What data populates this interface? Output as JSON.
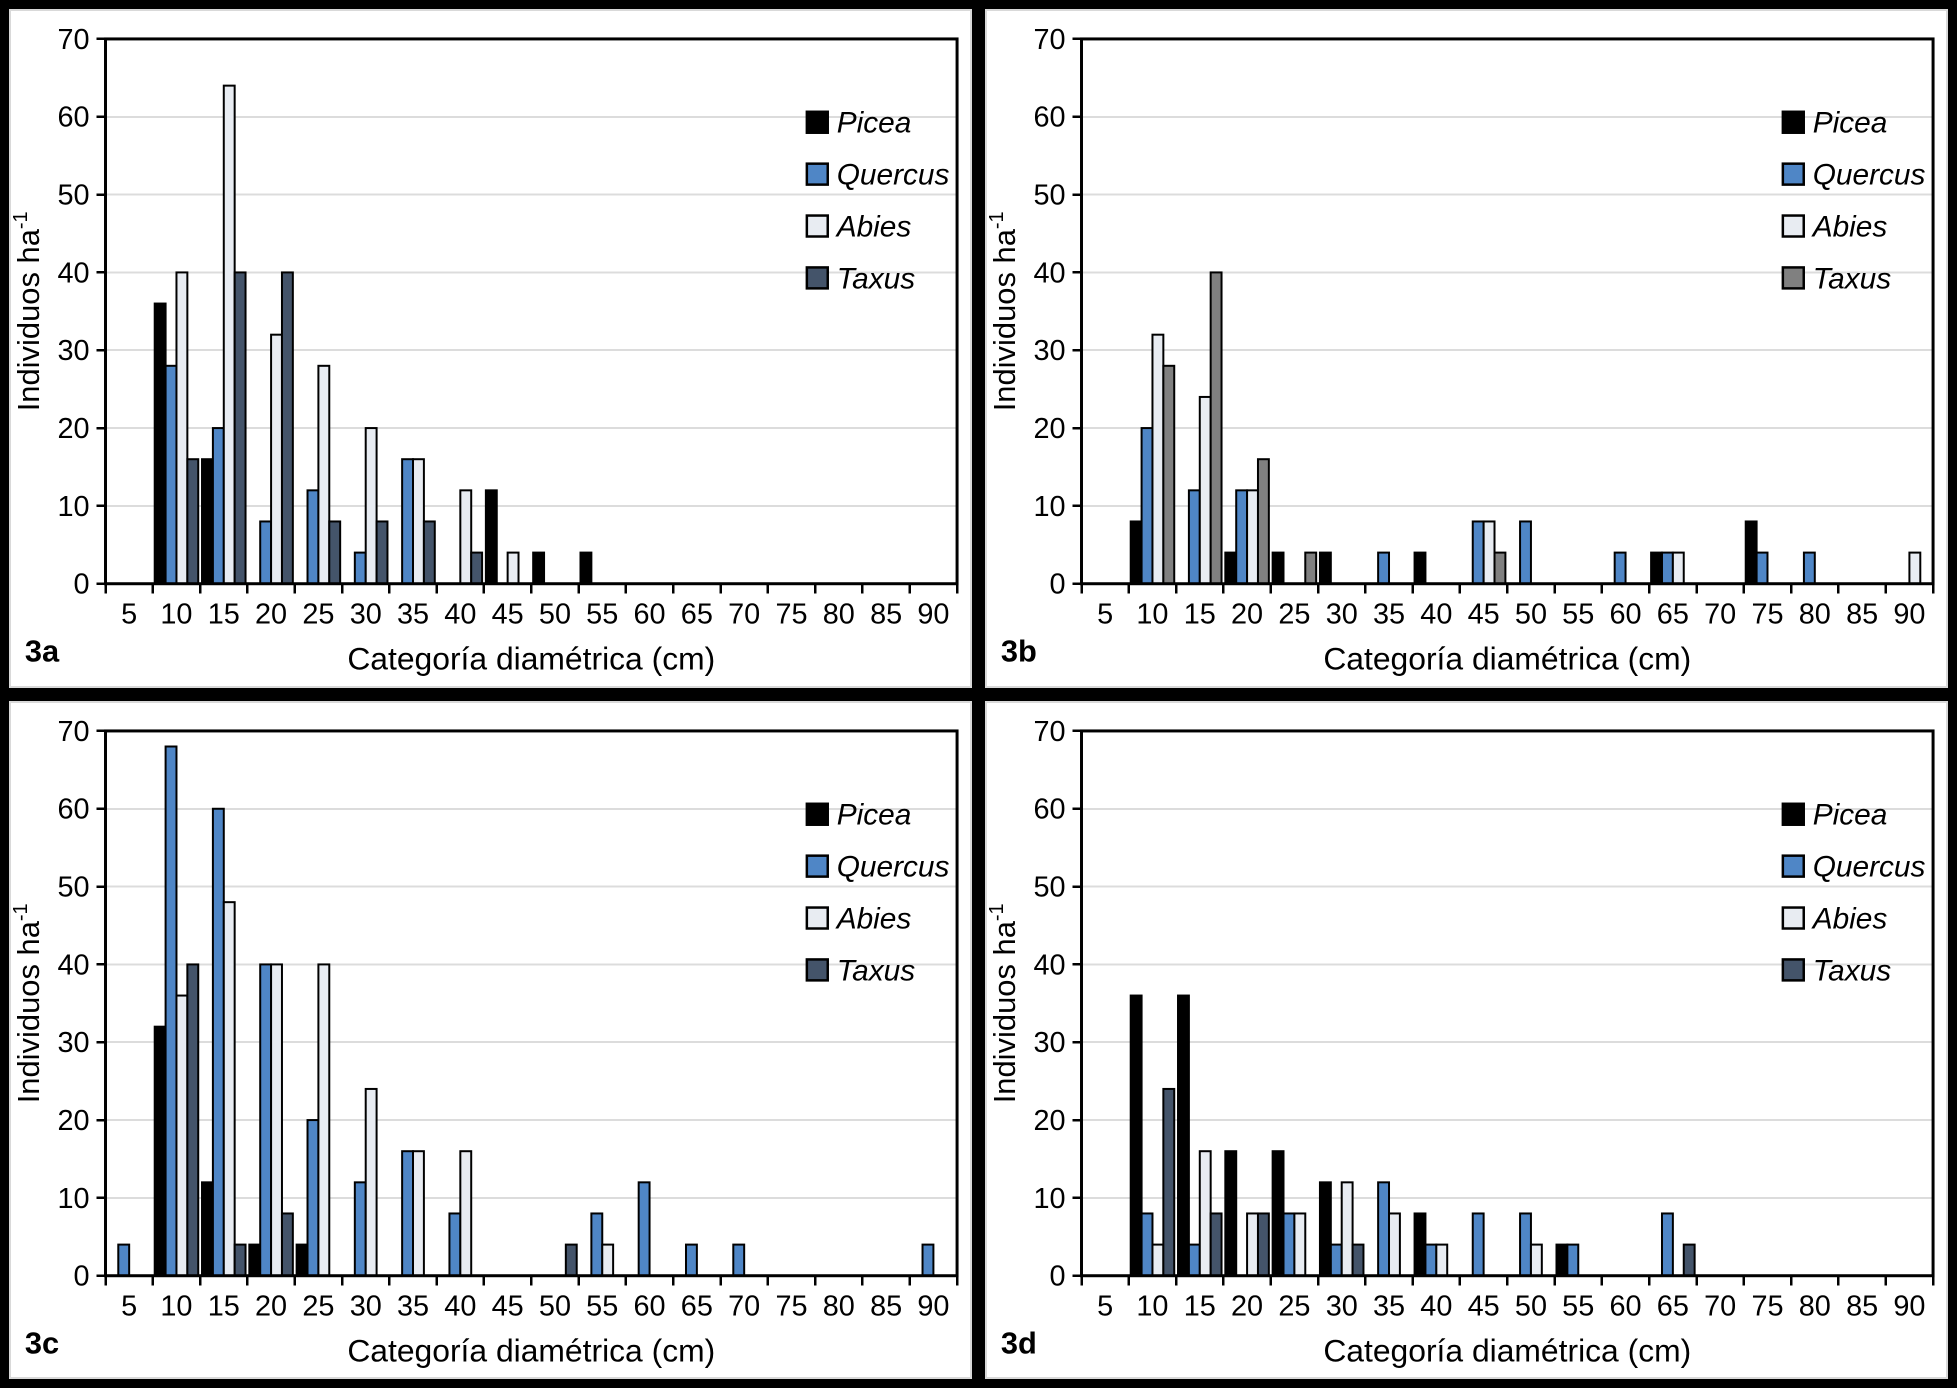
{
  "styles": {
    "figure_background": "#000000",
    "panel_background": "#FFFFFF",
    "panel_edge": "#D9D9D9",
    "gridline_color": "#DCDCDC",
    "axis_color": "#000000",
    "bar_border_color": "#000000"
  },
  "axis": {
    "x_title": "Categoría diamétrica (cm)",
    "y_title": "Individuos ha",
    "y_title_superscript": "-1",
    "y_ticks": [
      0,
      10,
      20,
      30,
      40,
      50,
      60,
      70
    ],
    "ylim": [
      0,
      70
    ],
    "categories": [
      5,
      10,
      15,
      20,
      25,
      30,
      35,
      40,
      45,
      50,
      55,
      60,
      65,
      70,
      75,
      80,
      85,
      90
    ]
  },
  "legend_labels": [
    "Picea",
    "Quercus",
    "Abies",
    "Taxus"
  ],
  "chart_data": [
    {
      "type": "bar",
      "panel_label": "3a",
      "title": "",
      "xlabel": "Categoría diamétrica (cm)",
      "ylabel": "Individuos ha-1",
      "ylim": [
        0,
        70
      ],
      "grid": "horizontal",
      "legend_position": "inside-top-right",
      "categories": [
        5,
        10,
        15,
        20,
        25,
        30,
        35,
        40,
        45,
        50,
        55,
        60,
        65,
        70,
        75,
        80,
        85,
        90
      ],
      "series": [
        {
          "name": "Picea",
          "color": "#000000",
          "values": [
            0,
            36,
            16,
            0,
            0,
            0,
            0,
            0,
            12,
            4,
            4,
            0,
            0,
            0,
            0,
            0,
            0,
            0
          ]
        },
        {
          "name": "Quercus",
          "color": "#4F86C6",
          "values": [
            0,
            28,
            20,
            8,
            12,
            4,
            16,
            0,
            0,
            0,
            0,
            0,
            0,
            0,
            0,
            0,
            0,
            0
          ]
        },
        {
          "name": "Abies",
          "color": "#E8ECF2",
          "values": [
            0,
            40,
            64,
            32,
            28,
            20,
            16,
            12,
            4,
            0,
            0,
            0,
            0,
            0,
            0,
            0,
            0,
            0
          ]
        },
        {
          "name": "Taxus",
          "color": "#44546A",
          "values": [
            0,
            16,
            40,
            40,
            8,
            8,
            8,
            4,
            0,
            0,
            0,
            0,
            0,
            0,
            0,
            0,
            0,
            0
          ]
        }
      ]
    },
    {
      "type": "bar",
      "panel_label": "3b",
      "title": "",
      "xlabel": "Categoría diamétrica (cm)",
      "ylabel": "Individuos ha-1",
      "ylim": [
        0,
        70
      ],
      "grid": "horizontal",
      "legend_position": "inside-top-right",
      "categories": [
        5,
        10,
        15,
        20,
        25,
        30,
        35,
        40,
        45,
        50,
        55,
        60,
        65,
        70,
        75,
        80,
        85,
        90
      ],
      "series": [
        {
          "name": "Picea",
          "color": "#000000",
          "values": [
            0,
            8,
            0,
            4,
            4,
            4,
            0,
            4,
            0,
            0,
            0,
            0,
            4,
            0,
            8,
            0,
            0,
            0
          ]
        },
        {
          "name": "Quercus",
          "color": "#4F86C6",
          "values": [
            0,
            20,
            12,
            12,
            0,
            0,
            4,
            0,
            8,
            8,
            0,
            4,
            4,
            0,
            4,
            4,
            0,
            0
          ]
        },
        {
          "name": "Abies",
          "color": "#E8ECF2",
          "values": [
            0,
            32,
            24,
            12,
            0,
            0,
            0,
            0,
            8,
            0,
            0,
            0,
            4,
            0,
            0,
            0,
            0,
            4
          ]
        },
        {
          "name": "Taxus",
          "color": "#808080",
          "values": [
            0,
            28,
            40,
            16,
            4,
            0,
            0,
            0,
            4,
            0,
            0,
            0,
            0,
            0,
            0,
            0,
            0,
            0
          ]
        }
      ]
    },
    {
      "type": "bar",
      "panel_label": "3c",
      "title": "",
      "xlabel": "Categoría diamétrica (cm)",
      "ylabel": "Individuos ha-1",
      "ylim": [
        0,
        70
      ],
      "grid": "horizontal",
      "legend_position": "inside-top-right",
      "categories": [
        5,
        10,
        15,
        20,
        25,
        30,
        35,
        40,
        45,
        50,
        55,
        60,
        65,
        70,
        75,
        80,
        85,
        90
      ],
      "series": [
        {
          "name": "Picea",
          "color": "#000000",
          "values": [
            0,
            32,
            12,
            4,
            4,
            0,
            0,
            0,
            0,
            0,
            0,
            0,
            0,
            0,
            0,
            0,
            0,
            0
          ]
        },
        {
          "name": "Quercus",
          "color": "#4F86C6",
          "values": [
            4,
            68,
            60,
            40,
            20,
            12,
            16,
            8,
            0,
            0,
            8,
            12,
            4,
            4,
            0,
            0,
            0,
            4
          ]
        },
        {
          "name": "Abies",
          "color": "#E8ECF2",
          "values": [
            0,
            36,
            48,
            40,
            40,
            24,
            16,
            16,
            0,
            0,
            4,
            0,
            0,
            0,
            0,
            0,
            0,
            0
          ]
        },
        {
          "name": "Taxus",
          "color": "#44546A",
          "values": [
            0,
            40,
            4,
            8,
            0,
            0,
            0,
            0,
            0,
            4,
            0,
            0,
            0,
            0,
            0,
            0,
            0,
            0
          ]
        }
      ]
    },
    {
      "type": "bar",
      "panel_label": "3d",
      "title": "",
      "xlabel": "Categoría diamétrica (cm)",
      "ylabel": "Individuos ha-1",
      "ylim": [
        0,
        70
      ],
      "grid": "horizontal",
      "legend_position": "inside-top-right",
      "categories": [
        5,
        10,
        15,
        20,
        25,
        30,
        35,
        40,
        45,
        50,
        55,
        60,
        65,
        70,
        75,
        80,
        85,
        90
      ],
      "series": [
        {
          "name": "Picea",
          "color": "#000000",
          "values": [
            0,
            36,
            36,
            16,
            16,
            12,
            0,
            8,
            0,
            0,
            4,
            0,
            0,
            0,
            0,
            0,
            0,
            0
          ]
        },
        {
          "name": "Quercus",
          "color": "#4F86C6",
          "values": [
            0,
            8,
            4,
            0,
            8,
            4,
            12,
            4,
            8,
            8,
            4,
            0,
            8,
            0,
            0,
            0,
            0,
            0
          ]
        },
        {
          "name": "Abies",
          "color": "#E8ECF2",
          "values": [
            0,
            4,
            16,
            8,
            8,
            12,
            8,
            4,
            0,
            4,
            0,
            0,
            0,
            0,
            0,
            0,
            0,
            0
          ]
        },
        {
          "name": "Taxus",
          "color": "#44546A",
          "values": [
            0,
            24,
            8,
            8,
            0,
            4,
            0,
            0,
            0,
            0,
            0,
            0,
            4,
            0,
            0,
            0,
            0,
            0
          ]
        }
      ]
    }
  ]
}
